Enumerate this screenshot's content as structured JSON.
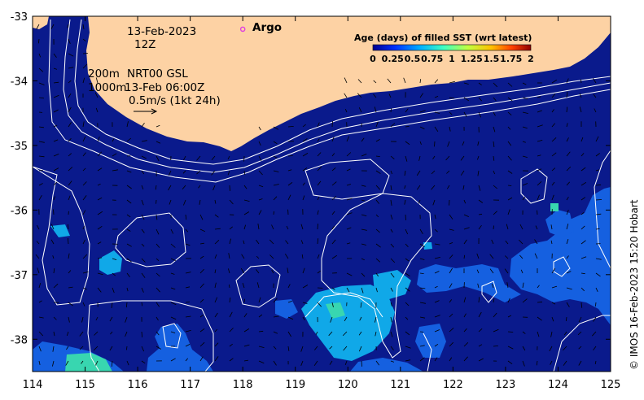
{
  "map": {
    "date": "13-Feb-2023",
    "time": "12Z",
    "contour_200m": "200m",
    "contour_1000m": "1000m",
    "product": "NRT00 GSL",
    "product_time": "13-Feb 06:00Z",
    "scale_label": "0.5m/s (1kt 24h)",
    "argo_label": "Argo",
    "argo_position": {
      "lon": 118.0,
      "lat": -33.2
    },
    "credit": "© IMOS 16-Feb-2023 15:20 Hobart",
    "lon_range": [
      114,
      125
    ],
    "lat_range": [
      -38.5,
      -33
    ],
    "lon_ticks": [
      "114",
      "115",
      "116",
      "117",
      "118",
      "119",
      "120",
      "121",
      "122",
      "123",
      "124",
      "125"
    ],
    "lat_ticks": [
      "-33",
      "-34",
      "-35",
      "-36",
      "-37",
      "-38"
    ],
    "colors": {
      "ocean": "#0a1a8c",
      "land": "#fdd2a4",
      "recent": "#1560e0",
      "older": "#10a8e8",
      "oldest": "#38d6b0",
      "argo": "#e040e0"
    }
  },
  "colorbar": {
    "title": "Age (days) of filled SST (wrt latest)",
    "ticks": [
      "0",
      "0.25",
      "0.5",
      "0.75",
      "1",
      "1.25",
      "1.5",
      "1.75",
      "2"
    ],
    "colors": [
      "#00008f",
      "#0040ff",
      "#00bfff",
      "#40ffbf",
      "#bfff40",
      "#ffbf00",
      "#ff4000",
      "#8f0000"
    ]
  }
}
